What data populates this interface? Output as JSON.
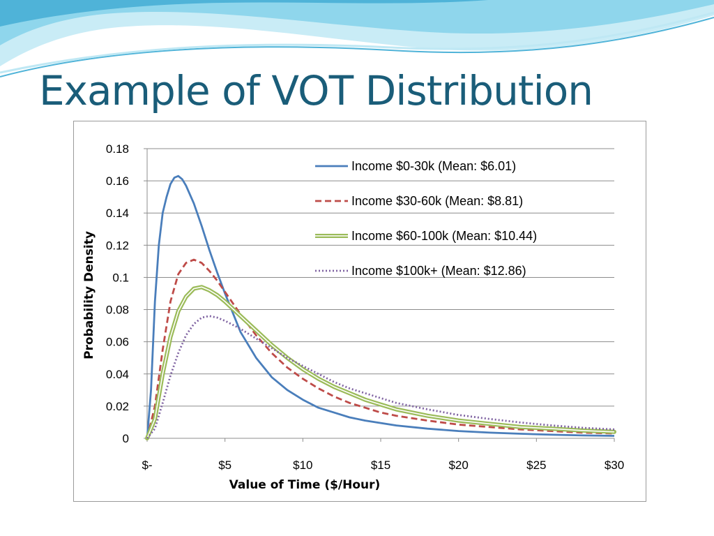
{
  "slide": {
    "title": "Example of VOT Distribution"
  },
  "colors": {
    "title": "#1a5d79",
    "banner_light": "#c9ecf6",
    "banner_mid": "#7fd0e8",
    "banner_dark": "#3aa7cf"
  },
  "chart_data": {
    "type": "line",
    "title": "",
    "xlabel": "Value of Time ($/Hour)",
    "ylabel": "Probability Density",
    "xlim": [
      0,
      30
    ],
    "ylim": [
      0,
      0.18
    ],
    "x_tick_values": [
      0,
      5,
      10,
      15,
      20,
      25,
      30
    ],
    "x_tick_labels": [
      "$-",
      "$5",
      "$10",
      "$15",
      "$20",
      "$25",
      "$30"
    ],
    "y_tick_values": [
      0,
      0.02,
      0.04,
      0.06,
      0.08,
      0.1,
      0.12,
      0.14,
      0.16,
      0.18
    ],
    "y_tick_labels": [
      "0",
      "0.02",
      "0.04",
      "0.06",
      "0.08",
      "0.1",
      "0.12",
      "0.14",
      "0.16",
      "0.18"
    ],
    "grid": "horizontal",
    "legend_position": "top-right",
    "series": [
      {
        "name": "Income $0-30k (Mean: $6.01)",
        "color": "#4a7ebb",
        "style": "solid",
        "x": [
          0,
          0.25,
          0.5,
          0.75,
          1,
          1.25,
          1.5,
          1.75,
          2,
          2.25,
          2.5,
          3,
          3.5,
          4,
          4.5,
          5,
          6,
          7,
          8,
          9,
          10,
          11,
          12,
          13,
          14,
          15,
          16,
          18,
          20,
          22,
          24,
          26,
          28,
          30
        ],
        "y": [
          0,
          0.03,
          0.085,
          0.12,
          0.14,
          0.15,
          0.158,
          0.162,
          0.163,
          0.161,
          0.157,
          0.146,
          0.132,
          0.117,
          0.103,
          0.09,
          0.066,
          0.05,
          0.038,
          0.03,
          0.024,
          0.019,
          0.016,
          0.013,
          0.011,
          0.0095,
          0.008,
          0.006,
          0.0045,
          0.0035,
          0.0028,
          0.0022,
          0.0018,
          0.0015
        ]
      },
      {
        "name": "Income $30-60k (Mean: $8.81)",
        "color": "#be4b48",
        "style": "dashed",
        "x": [
          0,
          0.5,
          1,
          1.5,
          2,
          2.5,
          3,
          3.5,
          4,
          4.5,
          5,
          6,
          7,
          8,
          9,
          10,
          11,
          12,
          13,
          14,
          15,
          16,
          18,
          20,
          22,
          24,
          26,
          28,
          30
        ],
        "y": [
          0,
          0.02,
          0.055,
          0.085,
          0.102,
          0.109,
          0.111,
          0.109,
          0.104,
          0.098,
          0.091,
          0.077,
          0.064,
          0.053,
          0.044,
          0.037,
          0.031,
          0.026,
          0.022,
          0.019,
          0.016,
          0.014,
          0.011,
          0.0085,
          0.007,
          0.0055,
          0.0045,
          0.0035,
          0.003
        ]
      },
      {
        "name": "Income $60-100k (Mean: $10.44)",
        "color": "#9bbb59",
        "style": "double",
        "x": [
          0,
          0.5,
          1,
          1.5,
          2,
          2.5,
          3,
          3.5,
          4,
          4.5,
          5,
          6,
          7,
          8,
          9,
          10,
          11,
          12,
          13,
          14,
          15,
          16,
          18,
          20,
          22,
          24,
          26,
          28,
          30
        ],
        "y": [
          0,
          0.012,
          0.04,
          0.063,
          0.079,
          0.088,
          0.093,
          0.094,
          0.092,
          0.089,
          0.085,
          0.076,
          0.067,
          0.058,
          0.05,
          0.043,
          0.037,
          0.032,
          0.028,
          0.024,
          0.021,
          0.018,
          0.014,
          0.011,
          0.009,
          0.007,
          0.006,
          0.0048,
          0.004
        ]
      },
      {
        "name": "Income $100k+ (Mean: $12.86)",
        "color": "#8064a2",
        "style": "dotted",
        "x": [
          0,
          0.5,
          1,
          1.5,
          2,
          2.5,
          3,
          3.5,
          4,
          4.5,
          5,
          6,
          7,
          8,
          9,
          10,
          11,
          12,
          13,
          14,
          15,
          16,
          18,
          20,
          22,
          24,
          26,
          28,
          30
        ],
        "y": [
          0,
          0.006,
          0.022,
          0.039,
          0.053,
          0.064,
          0.071,
          0.075,
          0.076,
          0.075,
          0.073,
          0.068,
          0.062,
          0.056,
          0.05,
          0.045,
          0.04,
          0.035,
          0.031,
          0.028,
          0.025,
          0.022,
          0.018,
          0.0145,
          0.012,
          0.0098,
          0.008,
          0.0065,
          0.0055
        ]
      }
    ]
  }
}
